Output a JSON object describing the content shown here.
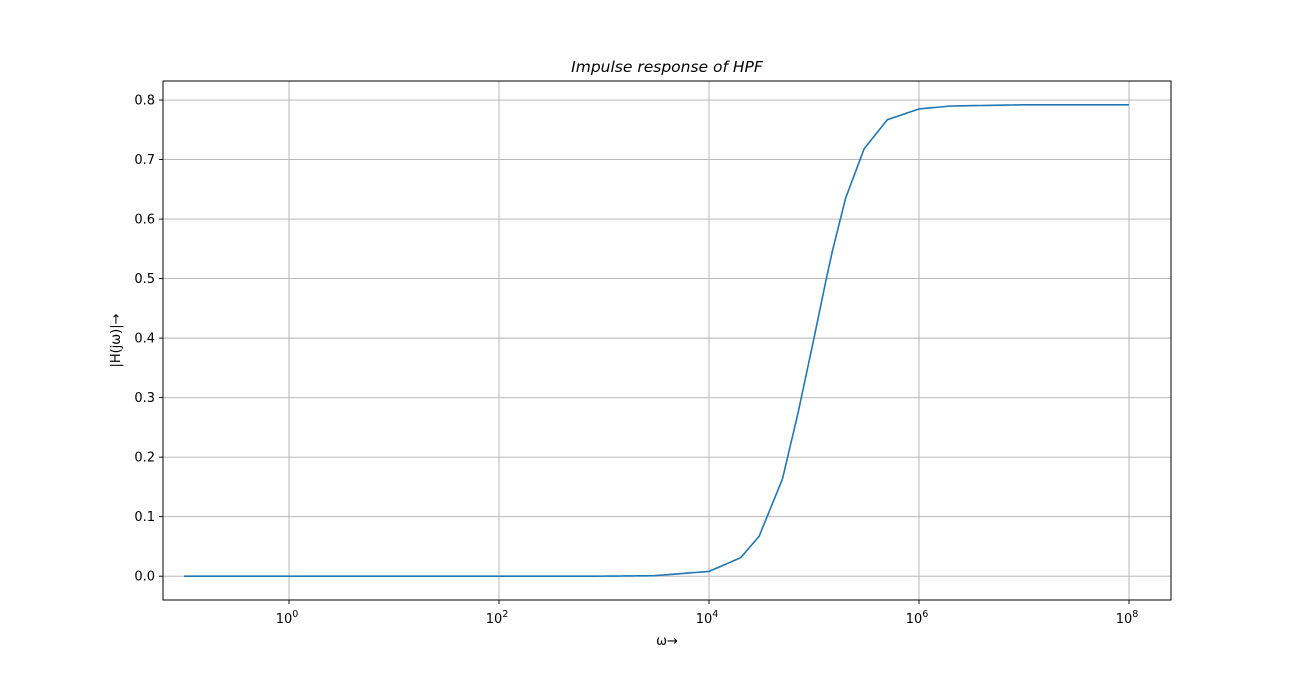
{
  "chart_data": {
    "type": "line",
    "title": "Impulse response of HPF",
    "xlabel": "ω→",
    "ylabel": "|H(jω)|→",
    "xscale": "log",
    "xlim_exp": [
      -1.2,
      8.4
    ],
    "ylim": [
      -0.04,
      0.832
    ],
    "grid": true,
    "colors": {
      "line": "#1f77b4",
      "grid": "#b0b0b0",
      "axes": "#000000"
    },
    "x_ticks": [
      {
        "value": 1,
        "base": "10",
        "exp": "0"
      },
      {
        "value": 100,
        "base": "10",
        "exp": "2"
      },
      {
        "value": 10000,
        "base": "10",
        "exp": "4"
      },
      {
        "value": 1000000,
        "base": "10",
        "exp": "6"
      },
      {
        "value": 100000000,
        "base": "10",
        "exp": "8"
      }
    ],
    "y_ticks": [
      "0.0",
      "0.1",
      "0.2",
      "0.3",
      "0.4",
      "0.5",
      "0.6",
      "0.7",
      "0.8"
    ],
    "series": [
      {
        "points": [
          [
            0.1,
            0.0
          ],
          [
            1,
            0.0
          ],
          [
            10,
            0.0
          ],
          [
            100,
            0.0
          ],
          [
            1000,
            0.0001
          ],
          [
            3000,
            0.0008
          ],
          [
            10000,
            0.008
          ],
          [
            20000,
            0.031
          ],
          [
            30000,
            0.067
          ],
          [
            50000,
            0.163
          ],
          [
            70000,
            0.272
          ],
          [
            100000,
            0.4
          ],
          [
            130000,
            0.497
          ],
          [
            150000,
            0.547
          ],
          [
            200000,
            0.635
          ],
          [
            300000,
            0.718
          ],
          [
            500000,
            0.767
          ],
          [
            1000000,
            0.785
          ],
          [
            2000000,
            0.79
          ],
          [
            10000000,
            0.792
          ],
          [
            100000000,
            0.792
          ]
        ]
      }
    ]
  }
}
